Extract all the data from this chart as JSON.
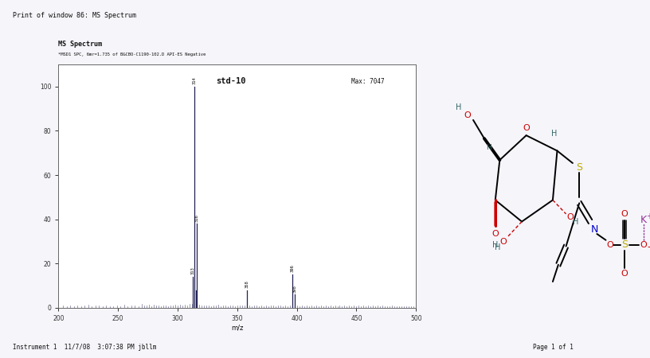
{
  "title_top": "Print of window 86: MS Spectrum",
  "spectrum_title": "MS Spectrum",
  "spectrum_subtitle": "*MSD1 SPC, 6mr=1.735 of B&CBO-C1190-102.D API-ES Negative",
  "sample_label": "std-10",
  "max_label": "Max: 7047",
  "footer_left": "Instrument 1  11/7/08  3:07:38 PM jbllm",
  "footer_right": "Page 1 of 1",
  "xlabel": "m/z",
  "xlim": [
    200,
    500
  ],
  "ylim": [
    0,
    110
  ],
  "xticks": [
    200,
    250,
    300,
    350,
    400,
    450,
    500
  ],
  "yticks": [
    0,
    20,
    40,
    60,
    80,
    100
  ],
  "peaks": [
    {
      "mz": 314.0,
      "intensity": 100,
      "label": "314"
    },
    {
      "mz": 316.0,
      "intensity": 38,
      "label": "316"
    },
    {
      "mz": 313.0,
      "intensity": 14,
      "label": "313"
    },
    {
      "mz": 315.5,
      "intensity": 8,
      "label": ""
    },
    {
      "mz": 358.0,
      "intensity": 8,
      "label": "358"
    },
    {
      "mz": 396.0,
      "intensity": 15,
      "label": "396"
    },
    {
      "mz": 398.0,
      "intensity": 6,
      "label": "398"
    }
  ],
  "noise_peaks": [
    [
      204,
      1.2
    ],
    [
      207,
      0.8
    ],
    [
      210,
      1.0
    ],
    [
      213,
      0.7
    ],
    [
      216,
      1.1
    ],
    [
      219,
      0.6
    ],
    [
      222,
      0.9
    ],
    [
      225,
      1.3
    ],
    [
      228,
      0.7
    ],
    [
      231,
      0.9
    ],
    [
      234,
      1.1
    ],
    [
      237,
      0.6
    ],
    [
      240,
      1.2
    ],
    [
      243,
      0.8
    ],
    [
      246,
      0.7
    ],
    [
      249,
      1.0
    ],
    [
      252,
      0.8
    ],
    [
      255,
      1.3
    ],
    [
      258,
      0.7
    ],
    [
      261,
      0.9
    ],
    [
      264,
      1.1
    ],
    [
      267,
      0.6
    ],
    [
      270,
      1.8
    ],
    [
      272,
      1.2
    ],
    [
      274,
      0.9
    ],
    [
      276,
      1.4
    ],
    [
      278,
      0.8
    ],
    [
      280,
      1.3
    ],
    [
      282,
      0.9
    ],
    [
      284,
      1.1
    ],
    [
      286,
      0.7
    ],
    [
      288,
      1.0
    ],
    [
      290,
      1.2
    ],
    [
      292,
      0.8
    ],
    [
      294,
      1.0
    ],
    [
      296,
      0.9
    ],
    [
      298,
      1.4
    ],
    [
      300,
      1.1
    ],
    [
      302,
      1.3
    ],
    [
      304,
      1.0
    ],
    [
      306,
      1.4
    ],
    [
      308,
      0.9
    ],
    [
      310,
      1.9
    ],
    [
      312,
      1.7
    ],
    [
      318,
      1.4
    ],
    [
      320,
      1.1
    ],
    [
      322,
      0.9
    ],
    [
      324,
      1.2
    ],
    [
      326,
      1.0
    ],
    [
      328,
      0.8
    ],
    [
      330,
      1.1
    ],
    [
      332,
      0.9
    ],
    [
      334,
      1.4
    ],
    [
      336,
      0.8
    ],
    [
      338,
      1.1
    ],
    [
      340,
      0.9
    ],
    [
      342,
      0.7
    ],
    [
      344,
      1.0
    ],
    [
      346,
      0.9
    ],
    [
      348,
      0.8
    ],
    [
      350,
      1.1
    ],
    [
      352,
      1.0
    ],
    [
      354,
      0.9
    ],
    [
      356,
      1.1
    ],
    [
      360,
      1.0
    ],
    [
      362,
      0.8
    ],
    [
      364,
      1.1
    ],
    [
      366,
      0.9
    ],
    [
      368,
      0.7
    ],
    [
      370,
      1.0
    ],
    [
      372,
      0.8
    ],
    [
      374,
      0.9
    ],
    [
      376,
      0.7
    ],
    [
      378,
      1.0
    ],
    [
      380,
      0.9
    ],
    [
      382,
      0.8
    ],
    [
      384,
      1.0
    ],
    [
      386,
      0.9
    ],
    [
      388,
      0.7
    ],
    [
      390,
      0.9
    ],
    [
      392,
      0.8
    ],
    [
      394,
      1.1
    ],
    [
      400,
      0.9
    ],
    [
      402,
      0.7
    ],
    [
      404,
      1.0
    ],
    [
      406,
      0.8
    ],
    [
      408,
      0.9
    ],
    [
      410,
      0.7
    ],
    [
      412,
      1.0
    ],
    [
      414,
      0.8
    ],
    [
      416,
      0.9
    ],
    [
      418,
      0.7
    ],
    [
      420,
      1.1
    ],
    [
      422,
      0.8
    ],
    [
      424,
      0.9
    ],
    [
      426,
      0.7
    ],
    [
      428,
      1.0
    ],
    [
      430,
      0.8
    ],
    [
      432,
      0.9
    ],
    [
      434,
      0.7
    ],
    [
      436,
      1.0
    ],
    [
      438,
      0.8
    ],
    [
      440,
      0.9
    ],
    [
      442,
      0.7
    ],
    [
      444,
      1.0
    ],
    [
      446,
      0.8
    ],
    [
      448,
      0.9
    ],
    [
      450,
      0.7
    ],
    [
      452,
      1.0
    ],
    [
      454,
      0.8
    ],
    [
      456,
      0.9
    ],
    [
      458,
      0.7
    ],
    [
      460,
      1.0
    ],
    [
      462,
      0.8
    ],
    [
      464,
      0.9
    ],
    [
      466,
      0.7
    ],
    [
      468,
      1.0
    ],
    [
      470,
      0.8
    ],
    [
      472,
      0.9
    ],
    [
      474,
      0.7
    ],
    [
      476,
      0.8
    ],
    [
      478,
      0.7
    ],
    [
      480,
      0.9
    ],
    [
      482,
      0.7
    ],
    [
      484,
      0.8
    ],
    [
      486,
      0.7
    ],
    [
      488,
      0.8
    ],
    [
      490,
      0.7
    ],
    [
      492,
      0.8
    ],
    [
      494,
      0.7
    ],
    [
      496,
      0.6
    ],
    [
      498,
      0.7
    ]
  ],
  "paper_color": "#f5f5fa",
  "plot_bg": "#ffffff",
  "text_color": "#111111",
  "peak_color": "#222255",
  "struct_bg": "#e0e0e0",
  "fig_width": 8.16,
  "fig_height": 4.5
}
